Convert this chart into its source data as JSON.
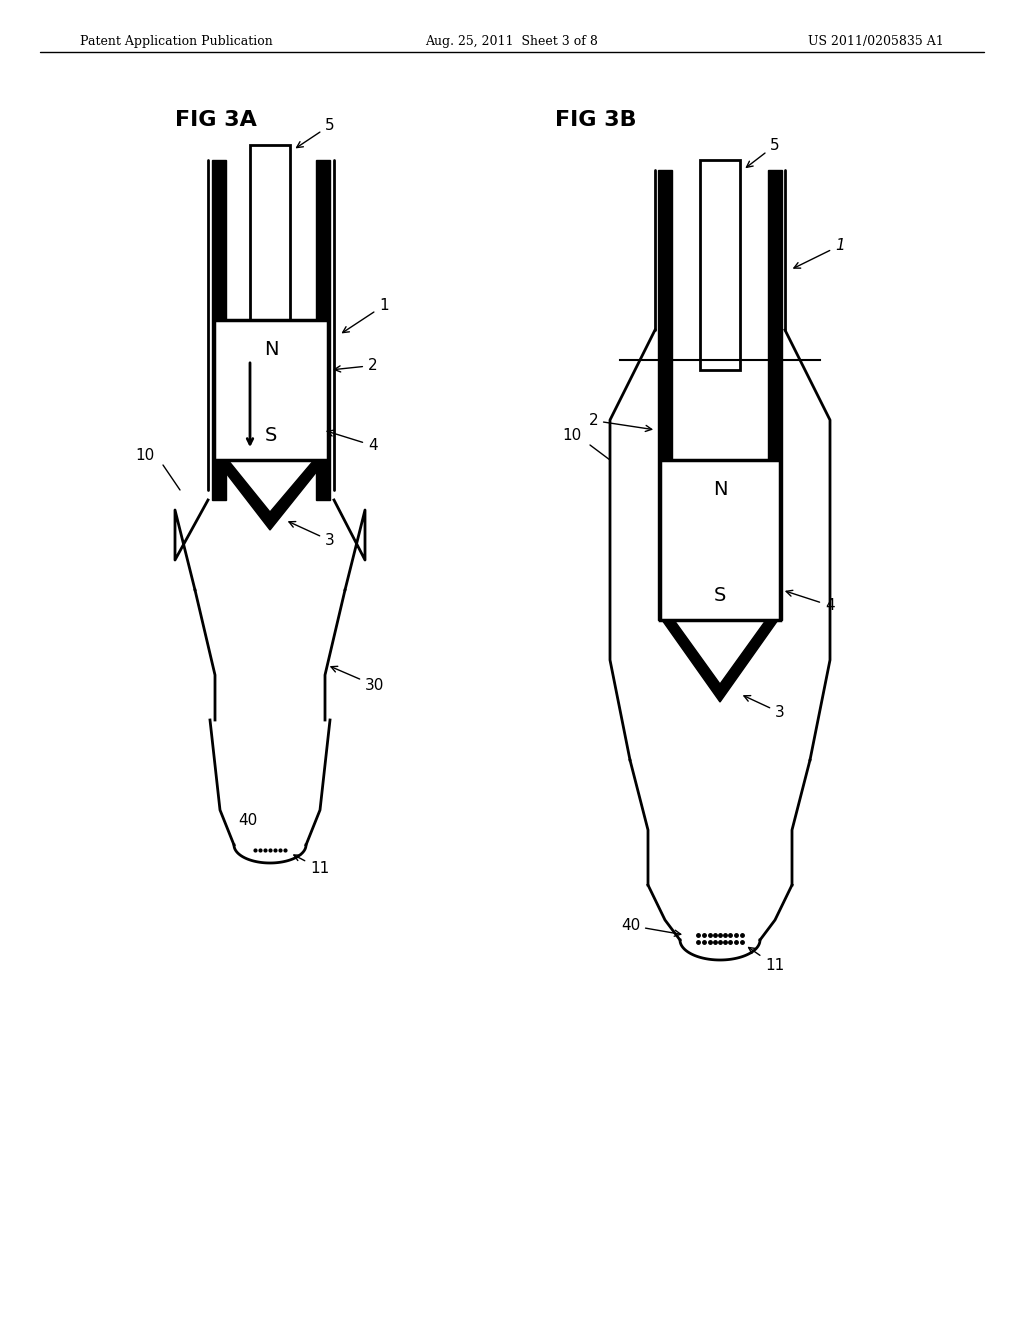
{
  "bg_color": "#ffffff",
  "line_color": "#000000",
  "thick_line": 6,
  "thin_line": 1.5,
  "medium_line": 2.5,
  "header_left": "Patent Application Publication",
  "header_center": "Aug. 25, 2011  Sheet 3 of 8",
  "header_right": "US 2011/0205835 A1",
  "fig3a_label": "FIG 3A",
  "fig3b_label": "FIG 3B",
  "label_N": "N",
  "label_S": "S"
}
